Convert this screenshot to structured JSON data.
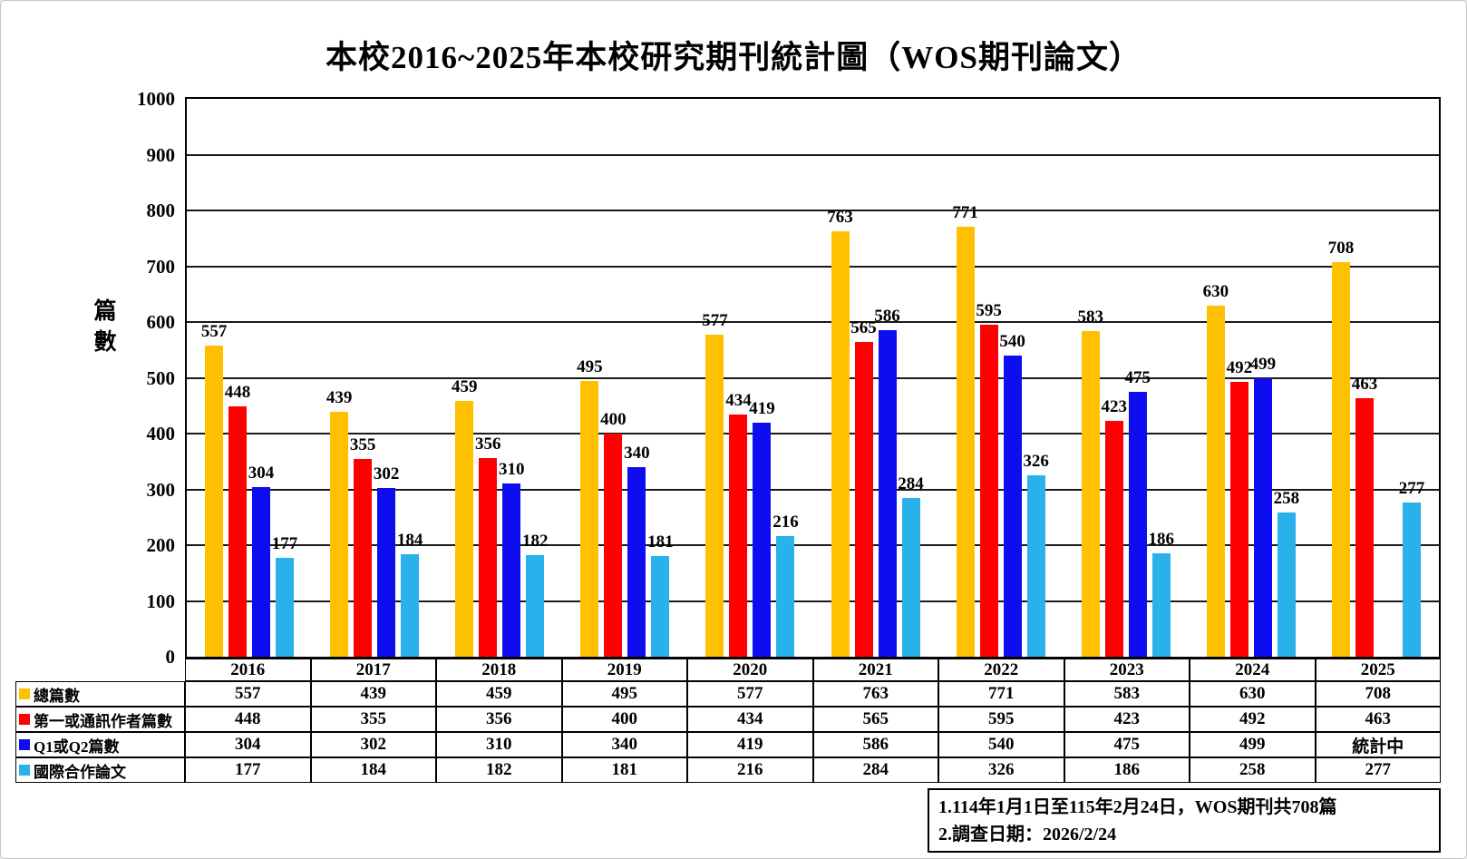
{
  "title": "本校2016~2025年本校研究期刊統計圖（WOS期刊論文）",
  "y_axis": {
    "label": "篇數",
    "tick_step": 100,
    "min": 0,
    "max": 1000
  },
  "chart_data": {
    "type": "bar",
    "title": "本校2016~2025年本校研究期刊統計圖（WOS期刊論文）",
    "xlabel": "",
    "ylabel": "篇數",
    "ylim": [
      0,
      1000
    ],
    "grid": true,
    "legend_position": "table-left",
    "categories": [
      "2016",
      "2017",
      "2018",
      "2019",
      "2020",
      "2021",
      "2022",
      "2023",
      "2024",
      "2025"
    ],
    "series": [
      {
        "name": "總篇數",
        "color": "#FFC000",
        "values": [
          557,
          439,
          459,
          495,
          577,
          763,
          771,
          583,
          630,
          708
        ],
        "table_values": [
          "557",
          "439",
          "459",
          "495",
          "577",
          "763",
          "771",
          "583",
          "630",
          "708"
        ]
      },
      {
        "name": "第一或通訊作者篇數",
        "color": "#FF0000",
        "values": [
          448,
          355,
          356,
          400,
          434,
          565,
          595,
          423,
          492,
          463
        ],
        "table_values": [
          "448",
          "355",
          "356",
          "400",
          "434",
          "565",
          "595",
          "423",
          "492",
          "463"
        ]
      },
      {
        "name": "Q1或Q2篇數",
        "color": "#0D0DF0",
        "values": [
          304,
          302,
          310,
          340,
          419,
          586,
          540,
          475,
          499,
          null
        ],
        "table_values": [
          "304",
          "302",
          "310",
          "340",
          "419",
          "586",
          "540",
          "475",
          "499",
          "統計中"
        ]
      },
      {
        "name": "國際合作論文",
        "color": "#29B1EC",
        "values": [
          177,
          184,
          182,
          181,
          216,
          284,
          326,
          186,
          258,
          277
        ],
        "table_values": [
          "177",
          "184",
          "182",
          "181",
          "216",
          "284",
          "326",
          "186",
          "258",
          "277"
        ]
      }
    ]
  },
  "notes": {
    "line1": "1.114年1月1日至115年2月24日，WOS期刊共708篇",
    "line2": "2.調查日期：2026/2/24"
  }
}
